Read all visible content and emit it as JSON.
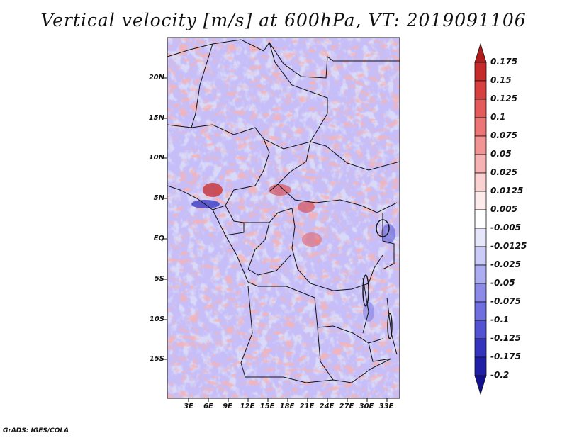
{
  "title": "Vertical velocity [m/s] at 600hPa, VT: 2019091106",
  "credit": "GrADS: IGES/COLA",
  "map": {
    "region": "Central Africa",
    "variable": "Vertical velocity",
    "units": "m/s",
    "level": "600hPa",
    "valid_time": "2019091106",
    "lat_labels": [
      "20N",
      "15N",
      "10N",
      "5N",
      "EQ",
      "5S",
      "10S",
      "15S"
    ],
    "lon_labels": [
      "3E",
      "6E",
      "9E",
      "12E",
      "15E",
      "18E",
      "21E",
      "24E",
      "27E",
      "30E",
      "33E"
    ]
  },
  "colorbar": {
    "levels": [
      "0.175",
      "0.15",
      "0.125",
      "0.1",
      "0.075",
      "0.05",
      "0.025",
      "0.0125",
      "0.005",
      "-0.005",
      "-0.0125",
      "-0.025",
      "-0.05",
      "-0.075",
      "-0.1",
      "-0.125",
      "-0.175",
      "-0.2"
    ],
    "colors": [
      "#b01b1b",
      "#c62a2a",
      "#d84040",
      "#e55a5a",
      "#ec7676",
      "#f29494",
      "#f7b3b3",
      "#fbd2d2",
      "#fdeaea",
      "#ffffff",
      "#e6e6fb",
      "#cbcbf7",
      "#acacf0",
      "#8c8ce8",
      "#6f6fdf",
      "#5252d2",
      "#3434bf",
      "#1f1fa8",
      "#12128f"
    ]
  }
}
